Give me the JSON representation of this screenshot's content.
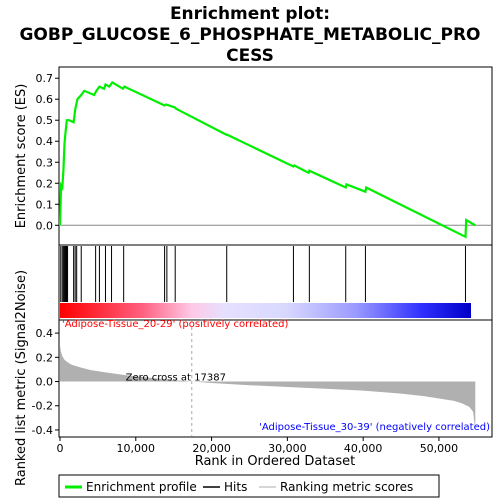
{
  "title_line1": "Enrichment plot:",
  "title_line2": "GOBP_GLUCOSE_6_PHOSPHATE_METABOLIC_PRO",
  "title_line3": "CESS",
  "chart_data": {
    "type": "line",
    "es_panel": {
      "ylabel": "Enrichment score (ES)",
      "ylim": [
        -0.07,
        0.72
      ],
      "yticks": [
        0.0,
        0.1,
        0.2,
        0.3,
        0.4,
        0.5,
        0.6,
        0.7
      ],
      "ytick_labels": [
        "0.0",
        "0.1",
        "0.2",
        "0.3",
        "0.4",
        "0.5",
        "0.6",
        "0.7"
      ],
      "series": [
        {
          "name": "Enrichment profile",
          "color": "#00ee00",
          "x": [
            0,
            150,
            300,
            450,
            600,
            750,
            900,
            1200,
            1800,
            2000,
            2300,
            2800,
            3200,
            4500,
            4800,
            5200,
            5800,
            6000,
            6500,
            6900,
            8300,
            8500,
            13800,
            14000,
            15200,
            15300,
            22000,
            22100,
            30800,
            30900,
            32800,
            32900,
            37700,
            37800,
            40300,
            40400,
            53500,
            53600,
            54800
          ],
          "y": [
            0.0,
            0.19,
            0.18,
            0.26,
            0.39,
            0.45,
            0.5,
            0.5,
            0.49,
            0.55,
            0.6,
            0.62,
            0.64,
            0.62,
            0.64,
            0.66,
            0.65,
            0.67,
            0.66,
            0.68,
            0.65,
            0.66,
            0.57,
            0.575,
            0.56,
            0.555,
            0.43,
            0.43,
            0.28,
            0.285,
            0.25,
            0.26,
            0.18,
            0.195,
            0.16,
            0.18,
            -0.055,
            0.025,
            0.0
          ]
        }
      ]
    },
    "hits": {
      "name": "Hits",
      "x": [
        100,
        300,
        450,
        600,
        700,
        800,
        900,
        1000,
        1800,
        2000,
        2200,
        2800,
        4700,
        5200,
        6000,
        6800,
        8400,
        13800,
        14100,
        15200,
        22000,
        30800,
        32900,
        37700,
        40300,
        53500
      ]
    },
    "ranked_metric": {
      "name": "Ranking metric scores",
      "ylabel": "Ranked list metric (Signal2Noise)",
      "ylim": [
        -0.45,
        0.5
      ],
      "yticks": [
        -0.4,
        -0.2,
        0.0,
        0.2,
        0.4
      ],
      "ytick_labels": [
        "-0.4",
        "-0.2",
        "0.0",
        "0.2",
        "0.4"
      ],
      "zero_cross": 17387,
      "zero_cross_label": "Zero cross at 17387",
      "positive_label": "'Adipose-Tissue_20-29' (positively correlated)",
      "negative_label": "'Adipose-Tissue_30-39' (negatively correlated)",
      "profile_x": [
        0,
        100,
        300,
        600,
        1000,
        1500,
        2500,
        4000,
        6000,
        9000,
        12000,
        15000,
        17387,
        20000,
        25000,
        30000,
        35000,
        40000,
        45000,
        48000,
        50000,
        52000,
        53000,
        54000,
        54500,
        54800
      ],
      "profile_y": [
        0.3,
        0.25,
        0.21,
        0.18,
        0.16,
        0.14,
        0.12,
        0.095,
        0.075,
        0.05,
        0.03,
        0.012,
        0.0,
        -0.012,
        -0.03,
        -0.045,
        -0.06,
        -0.075,
        -0.1,
        -0.12,
        -0.14,
        -0.16,
        -0.18,
        -0.21,
        -0.25,
        -0.4
      ]
    },
    "xlabel": "Rank in Ordered Dataset",
    "xlim": [
      0,
      57000
    ],
    "xticks": [
      0,
      10000,
      20000,
      30000,
      40000,
      50000
    ],
    "xtick_labels": [
      "0",
      "10,000",
      "20,000",
      "30,000",
      "40,000",
      "50,000"
    ],
    "dataset_size": 54800
  },
  "legend": {
    "items": [
      {
        "label": "Enrichment profile",
        "color": "#00ee00"
      },
      {
        "label": "Hits",
        "color": "#000000"
      },
      {
        "label": "Ranking metric scores",
        "color": "#c8c8c8"
      }
    ]
  },
  "colors": {
    "es_line": "#00ee00",
    "pos_text": "#ff0000",
    "neg_text": "#0000ff",
    "metric_fill": "#b0b0b0"
  }
}
